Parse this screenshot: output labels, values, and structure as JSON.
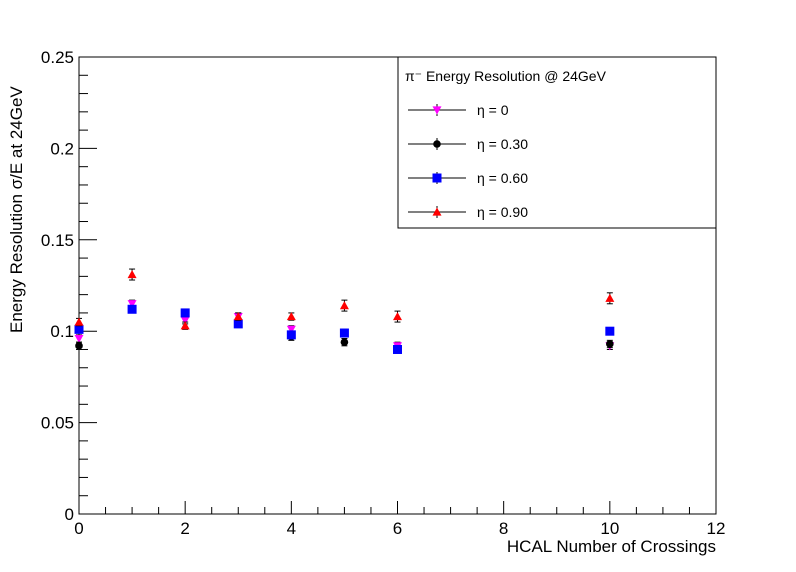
{
  "chart_data": {
    "type": "scatter",
    "title": "",
    "xlabel": "HCAL Number of Crossings",
    "ylabel": "Energy Resolution σ/E at 24GeV",
    "xlim": [
      0,
      12
    ],
    "ylim": [
      0,
      0.25
    ],
    "x_ticks": [
      "0",
      "2",
      "4",
      "6",
      "8",
      "10",
      "12"
    ],
    "y_ticks": [
      "0",
      "0.05",
      "0.1",
      "0.15",
      "0.2",
      "0.25"
    ],
    "grid": false,
    "legend_position": "top-right",
    "legend_title": "π⁻ Energy Resolution @ 24GeV",
    "series": [
      {
        "name": "η = 0",
        "marker": "triangle-down",
        "color": "#ff00ff",
        "x": [
          0,
          1,
          2,
          3,
          4,
          5,
          6,
          10
        ],
        "y": [
          0.096,
          0.115,
          0.106,
          0.108,
          0.101,
          0.099,
          0.092,
          0.092
        ],
        "err": [
          0.002,
          0.002,
          0.002,
          0.002,
          0.002,
          0.002,
          0.002,
          0.002
        ]
      },
      {
        "name": "η = 0.30",
        "marker": "circle",
        "color": "#000000",
        "x": [
          0,
          4,
          5,
          10
        ],
        "y": [
          0.092,
          0.097,
          0.094,
          0.093
        ],
        "err": [
          0.002,
          0.002,
          0.002,
          0.002
        ]
      },
      {
        "name": "η = 0.60",
        "marker": "square",
        "color": "#0000ff",
        "x": [
          0,
          1,
          2,
          3,
          4,
          5,
          6,
          10
        ],
        "y": [
          0.101,
          0.112,
          0.11,
          0.104,
          0.098,
          0.099,
          0.09,
          0.1
        ],
        "err": [
          0.002,
          0.002,
          0.002,
          0.002,
          0.002,
          0.002,
          0.002,
          0.002
        ]
      },
      {
        "name": "η = 0.90",
        "marker": "triangle-up",
        "color": "#ff0000",
        "x": [
          0,
          1,
          2,
          3,
          4,
          5,
          6,
          10
        ],
        "y": [
          0.105,
          0.131,
          0.103,
          0.108,
          0.108,
          0.114,
          0.108,
          0.118
        ],
        "err": [
          0.002,
          0.003,
          0.002,
          0.002,
          0.002,
          0.003,
          0.003,
          0.003
        ]
      }
    ]
  }
}
